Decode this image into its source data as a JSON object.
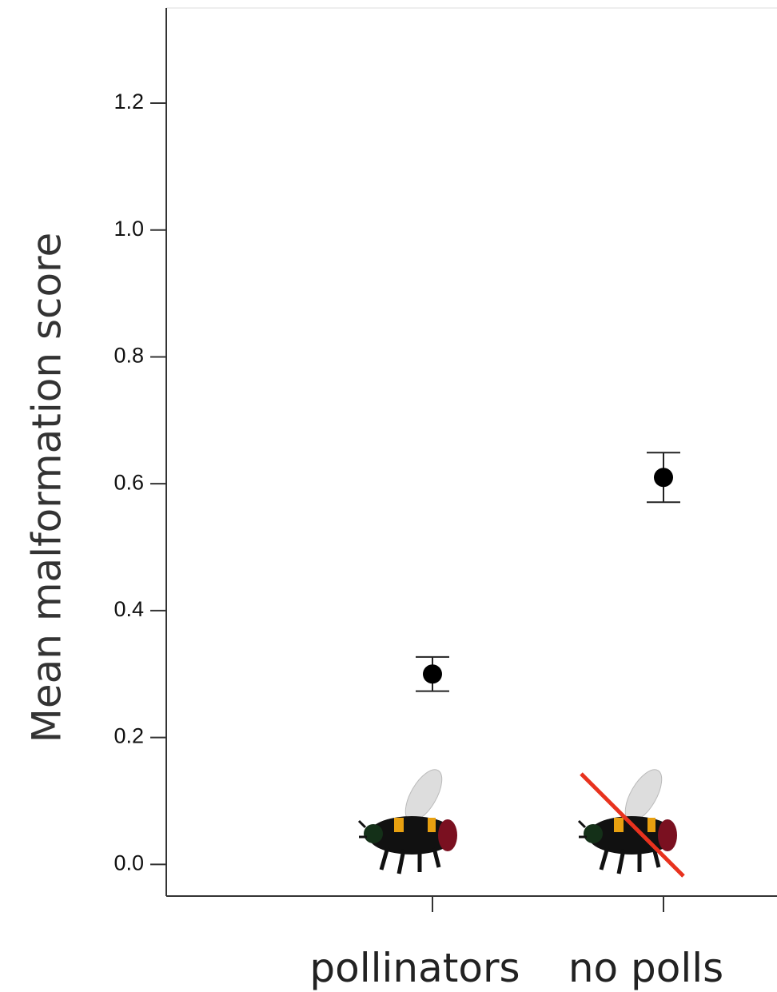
{
  "chart_data": {
    "type": "errorpoint",
    "y_label": "Mean malformation score",
    "categories": [
      "pollinators",
      "no polls"
    ],
    "values": [
      0.3,
      0.61
    ],
    "errors": [
      0.027,
      0.039
    ],
    "color": "#000000",
    "ylim": [
      -0.05,
      1.35
    ],
    "yticks": [
      {
        "value": 0,
        "label": "0.0"
      },
      0.2,
      0.4,
      0.6,
      0.8,
      {
        "value": 1,
        "label": "1.0"
      },
      1.2
    ]
  }
}
